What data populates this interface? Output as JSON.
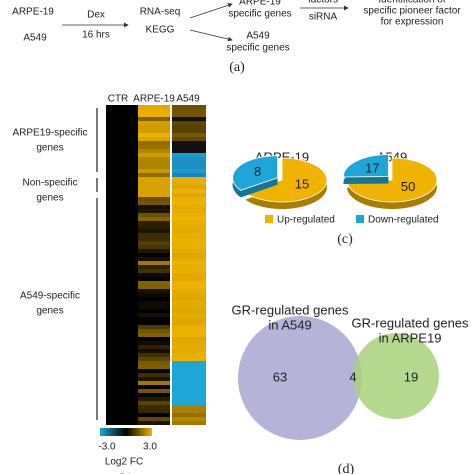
{
  "panel_a": {
    "cell_arpe": "ARPE-19",
    "cell_a549": "A549",
    "treat": "Dex",
    "time": "16 hrs",
    "method": [
      "RNA-seq",
      "KEGG"
    ],
    "out_arpe": [
      "ARPE-19",
      "specific genes"
    ],
    "out_a549": [
      "A549",
      "specific genes"
    ],
    "step": [
      "factors",
      "siRNA"
    ],
    "goal": [
      "Identification of",
      "specific pioneer factor",
      "for expression"
    ],
    "label": "(a)"
  },
  "panel_b": {
    "columns": [
      "CTR",
      "ARPE-19",
      "A549"
    ],
    "groups": [
      [
        "ARPE19-specific",
        "genes"
      ],
      [
        "Non-specific",
        "genes"
      ],
      [
        "A549-specific",
        "genes"
      ]
    ],
    "scale_min": "-3.0",
    "scale_max": "3.0",
    "scale_title": "Log2 FC",
    "label": "(b)"
  },
  "panel_c": {
    "pies": [
      {
        "title": "ARPE-19",
        "values": [
          15,
          8
        ]
      },
      {
        "title": "A549",
        "values": [
          50,
          17
        ]
      }
    ],
    "legend": [
      {
        "label": "Up-regulated",
        "color": "#f0b400"
      },
      {
        "label": "Down-regulated",
        "color": "#1ea6d8"
      }
    ],
    "label": "(c)"
  },
  "panel_d": {
    "left_title": [
      "GR-regulated genes",
      "in A549"
    ],
    "right_title": [
      "GR-regulated genes",
      "in ARPE19"
    ],
    "left_only": "63",
    "both": "4",
    "right_only": "19",
    "label": "(d)"
  }
}
